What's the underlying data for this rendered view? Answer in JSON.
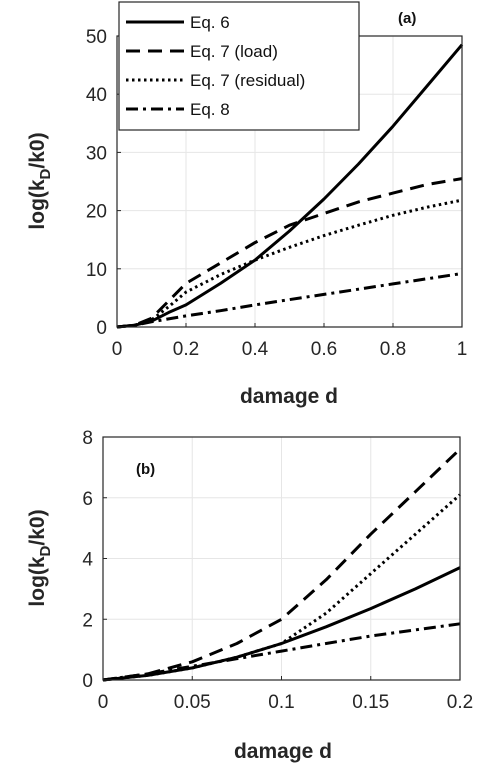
{
  "chart_data": [
    {
      "type": "line",
      "panel_label": "(a)",
      "xlabel": "damage d",
      "ylabel": "log(k_D/k0)",
      "xlim": [
        0,
        1
      ],
      "ylim": [
        0,
        50
      ],
      "xticks": [
        0,
        0.2,
        0.4,
        0.6,
        0.8,
        1
      ],
      "xtick_labels": [
        "0",
        "0.2",
        "0.4",
        "0.6",
        "0.8",
        "1"
      ],
      "yticks": [
        0,
        10,
        20,
        30,
        40,
        50
      ],
      "ytick_labels": [
        "0",
        "10",
        "20",
        "30",
        "40",
        "50"
      ],
      "grid": true,
      "legend_position": "top-left",
      "series": [
        {
          "name": "Eq. 6",
          "style": "solid",
          "color": "#000000",
          "x": [
            0,
            0.05,
            0.1,
            0.15,
            0.2,
            0.3,
            0.4,
            0.5,
            0.6,
            0.7,
            0.8,
            0.9,
            1.0
          ],
          "y": [
            0,
            0.3,
            1.0,
            2.5,
            3.8,
            7.5,
            11.5,
            16.5,
            22.0,
            28.0,
            34.5,
            41.5,
            48.5
          ]
        },
        {
          "name": "Eq. 7 (load)",
          "style": "dashed",
          "color": "#000000",
          "x": [
            0,
            0.05,
            0.1,
            0.15,
            0.2,
            0.3,
            0.4,
            0.5,
            0.6,
            0.7,
            0.8,
            0.9,
            1.0
          ],
          "y": [
            0,
            0.3,
            1.5,
            4.5,
            7.5,
            11.0,
            14.5,
            17.5,
            19.5,
            21.5,
            23.0,
            24.5,
            25.5
          ]
        },
        {
          "name": "Eq. 7 (residual)",
          "style": "dotted",
          "color": "#000000",
          "x": [
            0,
            0.05,
            0.1,
            0.15,
            0.2,
            0.3,
            0.4,
            0.5,
            0.6,
            0.7,
            0.8,
            0.9,
            1.0
          ],
          "y": [
            0,
            0.3,
            1.2,
            3.5,
            6.0,
            9.0,
            11.5,
            13.7,
            15.7,
            17.5,
            19.2,
            20.6,
            21.8
          ]
        },
        {
          "name": "Eq. 8",
          "style": "dashdot",
          "color": "#000000",
          "x": [
            0,
            0.05,
            0.1,
            0.2,
            0.3,
            0.4,
            0.5,
            0.6,
            0.7,
            0.8,
            0.9,
            1.0
          ],
          "y": [
            0,
            0.3,
            0.9,
            1.9,
            2.8,
            3.8,
            4.7,
            5.6,
            6.5,
            7.4,
            8.3,
            9.2
          ]
        }
      ]
    },
    {
      "type": "line",
      "panel_label": "(b)",
      "xlabel": "damage d",
      "ylabel": "log(k_D/k0)",
      "xlim": [
        0,
        0.2
      ],
      "ylim": [
        0,
        8
      ],
      "xticks": [
        0,
        0.05,
        0.1,
        0.15,
        0.2
      ],
      "xtick_labels": [
        "0",
        "0.05",
        "0.1",
        "0.15",
        "0.2"
      ],
      "yticks": [
        0,
        2,
        4,
        6,
        8
      ],
      "ytick_labels": [
        "0",
        "2",
        "4",
        "6",
        "8"
      ],
      "grid": true,
      "series": [
        {
          "name": "Eq. 6",
          "style": "solid",
          "color": "#000000",
          "x": [
            0,
            0.025,
            0.05,
            0.075,
            0.1,
            0.125,
            0.15,
            0.175,
            0.2
          ],
          "y": [
            0,
            0.15,
            0.4,
            0.75,
            1.2,
            1.75,
            2.35,
            3.0,
            3.7
          ]
        },
        {
          "name": "Eq. 7 (load)",
          "style": "dashed",
          "color": "#000000",
          "x": [
            0,
            0.025,
            0.05,
            0.075,
            0.1,
            0.125,
            0.15,
            0.175,
            0.2
          ],
          "y": [
            0,
            0.2,
            0.6,
            1.2,
            2.0,
            3.3,
            4.8,
            6.2,
            7.6
          ]
        },
        {
          "name": "Eq. 7 (residual)",
          "style": "dotted",
          "color": "#000000",
          "x": [
            0,
            0.025,
            0.05,
            0.075,
            0.1,
            0.125,
            0.15,
            0.175,
            0.2
          ],
          "y": [
            0,
            0.15,
            0.4,
            0.75,
            1.2,
            2.2,
            3.5,
            4.8,
            6.1
          ]
        },
        {
          "name": "Eq. 8",
          "style": "dashdot",
          "color": "#000000",
          "x": [
            0,
            0.025,
            0.05,
            0.075,
            0.1,
            0.125,
            0.15,
            0.175,
            0.2
          ],
          "y": [
            0,
            0.2,
            0.45,
            0.7,
            0.95,
            1.2,
            1.45,
            1.65,
            1.85
          ]
        }
      ]
    }
  ]
}
